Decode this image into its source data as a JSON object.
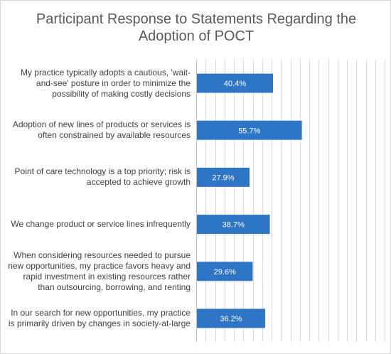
{
  "chart_data": {
    "type": "bar",
    "orientation": "horizontal",
    "title": "Participant Response to Statements Regarding the Adoption of POCT",
    "xlabel": "",
    "ylabel": "",
    "xlim": [
      0,
      100
    ],
    "grid": true,
    "bar_color": "#2e75c6",
    "categories": [
      "My practice typically adopts a cautious, 'wait-and-see' posture in order to minimize the possibility of making costly decisions",
      "Adoption of new lines of products or services is often constrained by available resources",
      "Point of care technology is a top priority; risk is accepted to achieve growth",
      "We change product or service lines infrequently",
      "When considering resources needed to pursue new opportunities, my practice favors heavy and rapid investment in existing resources rather than outsourcing, borrowing, and renting",
      "In our search for new opportunities, my practice is primarily driven by changes in society-at-large"
    ],
    "values": [
      40.4,
      55.7,
      27.9,
      38.7,
      29.6,
      36.2
    ],
    "value_labels": [
      "40.4%",
      "55.7%",
      "27.9%",
      "38.7%",
      "29.6%",
      "36.2%"
    ]
  }
}
